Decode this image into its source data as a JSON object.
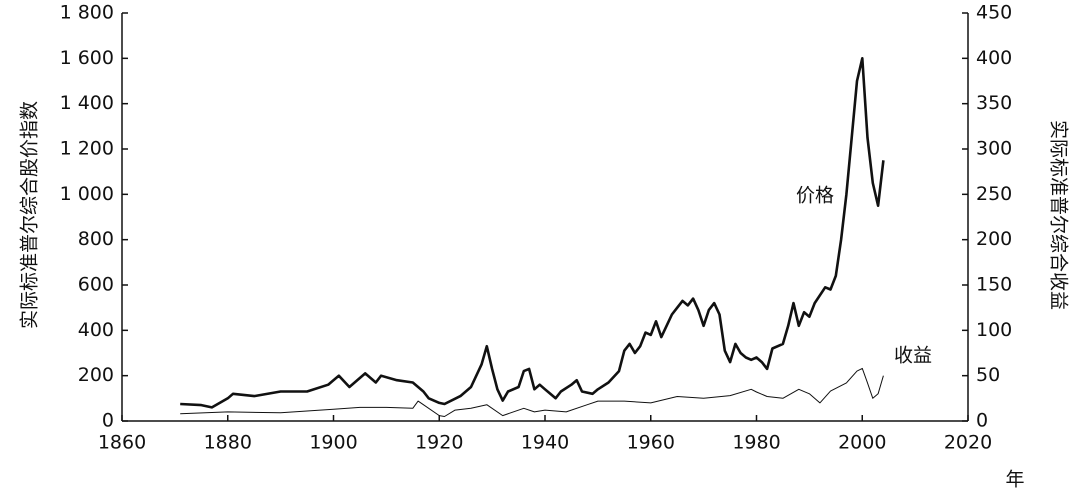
{
  "chart_data": {
    "type": "line",
    "y_label": "实际标准普尔综合股价指数",
    "y2_label": "实际标准普尔综合收益",
    "x_label": "年",
    "xlim": [
      1860,
      2020
    ],
    "xticks": [
      1860,
      1880,
      1900,
      1920,
      1940,
      1960,
      1980,
      2000,
      2020
    ],
    "ylim": [
      0,
      1800
    ],
    "yticks": [
      0,
      200,
      400,
      600,
      800,
      {
        "value": 1000,
        "label": "1 000"
      },
      {
        "value": 1200,
        "label": "1 200"
      },
      {
        "value": 1400,
        "label": "1 400"
      },
      {
        "value": 1600,
        "label": "1 600"
      },
      {
        "value": 1800,
        "label": "1 800"
      }
    ],
    "y2lim": [
      0,
      450
    ],
    "y2ticks": [
      0,
      50,
      100,
      150,
      200,
      250,
      300,
      350,
      400,
      450
    ],
    "series": [
      {
        "name": "价格",
        "color": "#111111",
        "line_width": 2.6,
        "x": [
          1871,
          1875,
          1877,
          1880,
          1881,
          1885,
          1890,
          1895,
          1899,
          1901,
          1903,
          1906,
          1908,
          1909,
          1912,
          1915,
          1917,
          1918,
          1920,
          1921,
          1924,
          1926,
          1928,
          1929,
          1930,
          1931,
          1932,
          1933,
          1935,
          1936,
          1937,
          1938,
          1939,
          1940,
          1941,
          1942,
          1943,
          1945,
          1946,
          1947,
          1949,
          1950,
          1952,
          1954,
          1955,
          1956,
          1957,
          1958,
          1959,
          1960,
          1961,
          1962,
          1963,
          1964,
          1965,
          1966,
          1967,
          1968,
          1969,
          1970,
          1971,
          1972,
          1973,
          1974,
          1975,
          1976,
          1977,
          1978,
          1979,
          1980,
          1981,
          1982,
          1983,
          1985,
          1986,
          1987,
          1988,
          1989,
          1990,
          1991,
          1993,
          1994,
          1995,
          1996,
          1997,
          1998,
          1999,
          2000,
          2001,
          2002,
          2003,
          2004
        ],
        "values": [
          75,
          70,
          60,
          100,
          120,
          110,
          130,
          130,
          160,
          200,
          150,
          210,
          170,
          200,
          180,
          170,
          130,
          100,
          80,
          75,
          110,
          150,
          250,
          330,
          230,
          140,
          90,
          130,
          150,
          220,
          230,
          140,
          160,
          140,
          120,
          100,
          130,
          160,
          180,
          130,
          120,
          140,
          170,
          220,
          310,
          340,
          300,
          330,
          390,
          380,
          440,
          370,
          420,
          470,
          500,
          530,
          510,
          540,
          490,
          420,
          490,
          520,
          470,
          310,
          260,
          340,
          300,
          280,
          270,
          280,
          260,
          230,
          320,
          340,
          420,
          520,
          420,
          480,
          460,
          520,
          590,
          580,
          640,
          800,
          1000,
          1250,
          1500,
          1600,
          1250,
          1050,
          950,
          1150
        ]
      },
      {
        "name": "收益",
        "color": "#111111",
        "line_width": 1,
        "axis": "y2",
        "x": [
          1871,
          1880,
          1890,
          1900,
          1905,
          1910,
          1915,
          1916,
          1917,
          1920,
          1921,
          1923,
          1926,
          1929,
          1932,
          1936,
          1938,
          1940,
          1944,
          1948,
          1950,
          1955,
          1960,
          1965,
          1970,
          1975,
          1979,
          1980,
          1982,
          1985,
          1988,
          1990,
          1992,
          1994,
          1997,
          1999,
          2000,
          2001,
          2002,
          2003,
          2004
        ],
        "values": [
          8,
          10,
          9,
          13,
          15,
          15,
          14,
          22,
          18,
          6,
          5,
          12,
          14,
          18,
          6,
          14,
          10,
          12,
          10,
          18,
          22,
          22,
          20,
          27,
          25,
          28,
          35,
          32,
          27,
          25,
          35,
          30,
          20,
          33,
          42,
          55,
          58,
          42,
          25,
          30,
          50
        ]
      }
    ]
  }
}
